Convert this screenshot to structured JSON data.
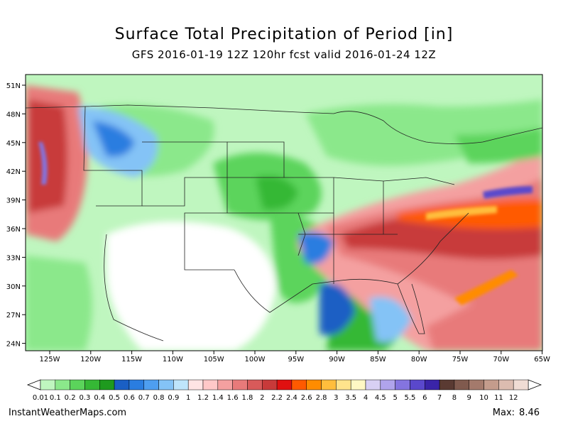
{
  "title": "Surface Total Precipitation of Period [in]",
  "subtitle": "GFS 2016-01-19 12Z 120hr fcst valid 2016-01-24 12Z",
  "footer": {
    "credit": "InstantWeatherMaps.com",
    "max_label": "Max:",
    "max_value": "8.46"
  },
  "map": {
    "lat_labels": [
      "51N",
      "48N",
      "45N",
      "42N",
      "39N",
      "36N",
      "33N",
      "30N",
      "27N",
      "24N"
    ],
    "lon_labels": [
      "125W",
      "120W",
      "115W",
      "110W",
      "105W",
      "100W",
      "95W",
      "90W",
      "85W",
      "80W",
      "75W",
      "70W",
      "65W"
    ]
  },
  "legend": {
    "labels": [
      "0.01",
      "0.1",
      "0.2",
      "0.3",
      "0.4",
      "0.5",
      "0.6",
      "0.7",
      "0.8",
      "0.9",
      "1",
      "1.2",
      "1.4",
      "1.6",
      "1.8",
      "2",
      "2.2",
      "2.4",
      "2.6",
      "2.8",
      "3",
      "3.5",
      "4",
      "4.5",
      "5",
      "5.5",
      "6",
      "7",
      "8",
      "9",
      "10",
      "11",
      "12"
    ],
    "colors": [
      "#bff6bf",
      "#8be88b",
      "#5bd45b",
      "#35b835",
      "#1e9a1e",
      "#1a5fc4",
      "#2a7de0",
      "#4e9ef0",
      "#84c3f6",
      "#bfe5fb",
      "#ffe4e4",
      "#ffc8c8",
      "#f4a0a0",
      "#e87a7a",
      "#d85a5a",
      "#c83a3a",
      "#e01010",
      "#ff5a00",
      "#ff8c00",
      "#ffbe3c",
      "#ffe48c",
      "#fff8c4",
      "#d8d0f4",
      "#b0a4ec",
      "#8474e0",
      "#5a48cc",
      "#3a24a8",
      "#5a3a32",
      "#805a4e",
      "#a47a6c",
      "#c49c8c",
      "#dcbcb0",
      "#f0dcd4"
    ]
  }
}
